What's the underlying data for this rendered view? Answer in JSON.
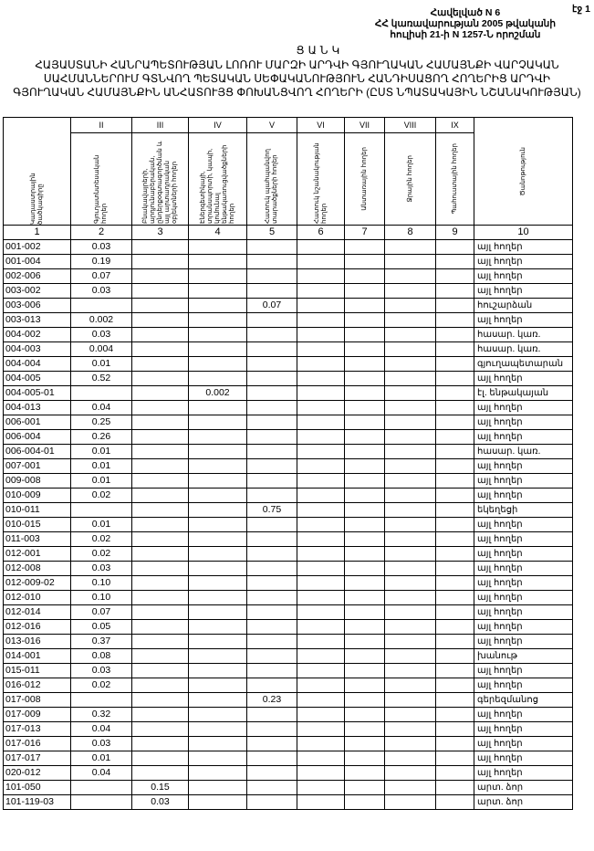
{
  "page_number": "էջ 1",
  "annex": {
    "line1": "Հավելված N 6",
    "line2": "ՀՀ կառավարության 2005 թվականի",
    "line3": "հուլիսի 21-ի N 1257-Ն որոշման"
  },
  "doc_label": "ՑԱՆԿ",
  "doc_title": "ՀԱՅԱՍՏԱՆԻ ՀԱՆՐԱՊԵՏՈՒԹՅԱՆ ԼՈՌՈՒ ՄԱՐԶԻ ԱՐԴՎԻ ԳՅՈՒՂԱԿԱՆ ՀԱՄԱՅՆՔԻ ՎԱՐՉԱԿԱՆ ՍԱՀՄԱՆՆԵՐՈՒՄ ԳՏՆՎՈՂ ՊԵՏԱԿԱՆ ՍԵՓԱԿԱՆՈՒԹՅՈՒՆ ՀԱՆԴԻՍԱՑՈՂ ՀՈՂԵՐԻՑ ԱՐԴՎԻ ԳՅՈՒՂԱԿԱՆ ՀԱՄԱՅՆՔԻՆ ԱՆՀԱՏՈՒՅՑ ՓՈԽԱՆՑՎՈՂ ՀՈՂԵՐԻ (ԸՍՏ ՆՊԱՏԱԿԱՅԻՆ ՆՇԱՆԱԿՈՒԹՅԱՆ)",
  "table": {
    "roman": [
      "II",
      "III",
      "IV",
      "V",
      "VI",
      "VII",
      "VIII",
      "IX"
    ],
    "headers": [
      "Կադաստրային ծածկագիրը",
      "Գյուղատնտեսական հողեր",
      "Բնակավայրերի, արդյունաբերական, ընդերքօգտագործման և այլ արտադրական օբյեկտների հողեր",
      "Էներգետիկայի, տրանսպորտի, կապի, կոմունալ ենթակառուցվածքների հողեր",
      "Հատուկ պահպանվող տարածքների հողեր",
      "Հատուկ նշանակության հողեր",
      "Անտառային հողեր",
      "Ջրային հողեր",
      "Պահուստային հողեր",
      "Ծանոթություն"
    ],
    "numbers": [
      "1",
      "2",
      "3",
      "4",
      "5",
      "6",
      "7",
      "8",
      "9",
      "10"
    ],
    "rows": [
      {
        "code": "001-002",
        "c2": "0.03",
        "c3": "",
        "c4": "",
        "c5": "",
        "note": "այլ հողեր"
      },
      {
        "code": "001-004",
        "c2": "0.19",
        "c3": "",
        "c4": "",
        "c5": "",
        "note": "այլ հողեր"
      },
      {
        "code": "002-006",
        "c2": "0.07",
        "c3": "",
        "c4": "",
        "c5": "",
        "note": "այլ հողեր"
      },
      {
        "code": "003-002",
        "c2": "0.03",
        "c3": "",
        "c4": "",
        "c5": "",
        "note": "այլ հողեր"
      },
      {
        "code": "003-006",
        "c2": "",
        "c3": "",
        "c4": "",
        "c5": "0.07",
        "note": "հուշարձան"
      },
      {
        "code": "003-013",
        "c2": "0.002",
        "c3": "",
        "c4": "",
        "c5": "",
        "note": "այլ հողեր"
      },
      {
        "code": "004-002",
        "c2": "0.03",
        "c3": "",
        "c4": "",
        "c5": "",
        "note": "հասար. կառ."
      },
      {
        "code": "004-003",
        "c2": "0.004",
        "c3": "",
        "c4": "",
        "c5": "",
        "note": "հասար. կառ."
      },
      {
        "code": "004-004",
        "c2": "0.01",
        "c3": "",
        "c4": "",
        "c5": "",
        "note": "գյուղապետարան"
      },
      {
        "code": "004-005",
        "c2": "0.52",
        "c3": "",
        "c4": "",
        "c5": "",
        "note": "այլ հողեր"
      },
      {
        "code": "004-005-01",
        "c2": "",
        "c3": "",
        "c4": "0.002",
        "c5": "",
        "note": "էլ. ենթակայան"
      },
      {
        "code": "004-013",
        "c2": "0.04",
        "c3": "",
        "c4": "",
        "c5": "",
        "note": "այլ հողեր"
      },
      {
        "code": "006-001",
        "c2": "0.25",
        "c3": "",
        "c4": "",
        "c5": "",
        "note": "այլ հողեր"
      },
      {
        "code": "006-004",
        "c2": "0.26",
        "c3": "",
        "c4": "",
        "c5": "",
        "note": "այլ հողեր"
      },
      {
        "code": "006-004-01",
        "c2": "0.01",
        "c3": "",
        "c4": "",
        "c5": "",
        "note": "հասար. կառ."
      },
      {
        "code": "007-001",
        "c2": "0.01",
        "c3": "",
        "c4": "",
        "c5": "",
        "note": "այլ հողեր"
      },
      {
        "code": "009-008",
        "c2": "0.01",
        "c3": "",
        "c4": "",
        "c5": "",
        "note": "այլ հողեր"
      },
      {
        "code": "010-009",
        "c2": "0.02",
        "c3": "",
        "c4": "",
        "c5": "",
        "note": "այլ հողեր"
      },
      {
        "code": "010-011",
        "c2": "",
        "c3": "",
        "c4": "",
        "c5": "0.75",
        "note": "եկեղեցի"
      },
      {
        "code": "010-015",
        "c2": "0.01",
        "c3": "",
        "c4": "",
        "c5": "",
        "note": "այլ հողեր"
      },
      {
        "code": "011-003",
        "c2": "0.02",
        "c3": "",
        "c4": "",
        "c5": "",
        "note": "այլ հողեր"
      },
      {
        "code": "012-001",
        "c2": "0.02",
        "c3": "",
        "c4": "",
        "c5": "",
        "note": "այլ հողեր"
      },
      {
        "code": "012-008",
        "c2": "0.03",
        "c3": "",
        "c4": "",
        "c5": "",
        "note": "այլ հողեր"
      },
      {
        "code": "012-009-02",
        "c2": "0.10",
        "c3": "",
        "c4": "",
        "c5": "",
        "note": "այլ հողեր"
      },
      {
        "code": "012-010",
        "c2": "0.10",
        "c3": "",
        "c4": "",
        "c5": "",
        "note": "այլ հողեր"
      },
      {
        "code": "012-014",
        "c2": "0.07",
        "c3": "",
        "c4": "",
        "c5": "",
        "note": "այլ հողեր"
      },
      {
        "code": "012-016",
        "c2": "0.05",
        "c3": "",
        "c4": "",
        "c5": "",
        "note": "այլ հողեր"
      },
      {
        "code": "013-016",
        "c2": "0.37",
        "c3": "",
        "c4": "",
        "c5": "",
        "note": "այլ հողեր"
      },
      {
        "code": "014-001",
        "c2": "0.08",
        "c3": "",
        "c4": "",
        "c5": "",
        "note": "խանութ"
      },
      {
        "code": "015-011",
        "c2": "0.03",
        "c3": "",
        "c4": "",
        "c5": "",
        "note": "այլ հողեր"
      },
      {
        "code": "016-012",
        "c2": "0.02",
        "c3": "",
        "c4": "",
        "c5": "",
        "note": "այլ հողեր"
      },
      {
        "code": "017-008",
        "c2": "",
        "c3": "",
        "c4": "",
        "c5": "0.23",
        "note": "գերեզմանոց"
      },
      {
        "code": "017-009",
        "c2": "0.32",
        "c3": "",
        "c4": "",
        "c5": "",
        "note": "այլ հողեր"
      },
      {
        "code": "017-013",
        "c2": "0.04",
        "c3": "",
        "c4": "",
        "c5": "",
        "note": "այլ հողեր"
      },
      {
        "code": "017-016",
        "c2": "0.03",
        "c3": "",
        "c4": "",
        "c5": "",
        "note": "այլ հողեր"
      },
      {
        "code": "017-017",
        "c2": "0.01",
        "c3": "",
        "c4": "",
        "c5": "",
        "note": "այլ հողեր"
      },
      {
        "code": "020-012",
        "c2": "0.04",
        "c3": "",
        "c4": "",
        "c5": "",
        "note": "այլ հողեր"
      },
      {
        "code": "101-050",
        "c2": "",
        "c3": "0.15",
        "c4": "",
        "c5": "",
        "note": "արտ. ձոր"
      },
      {
        "code": "101-119-03",
        "c2": "",
        "c3": "0.03",
        "c4": "",
        "c5": "",
        "note": "արտ. ձոր"
      }
    ]
  }
}
